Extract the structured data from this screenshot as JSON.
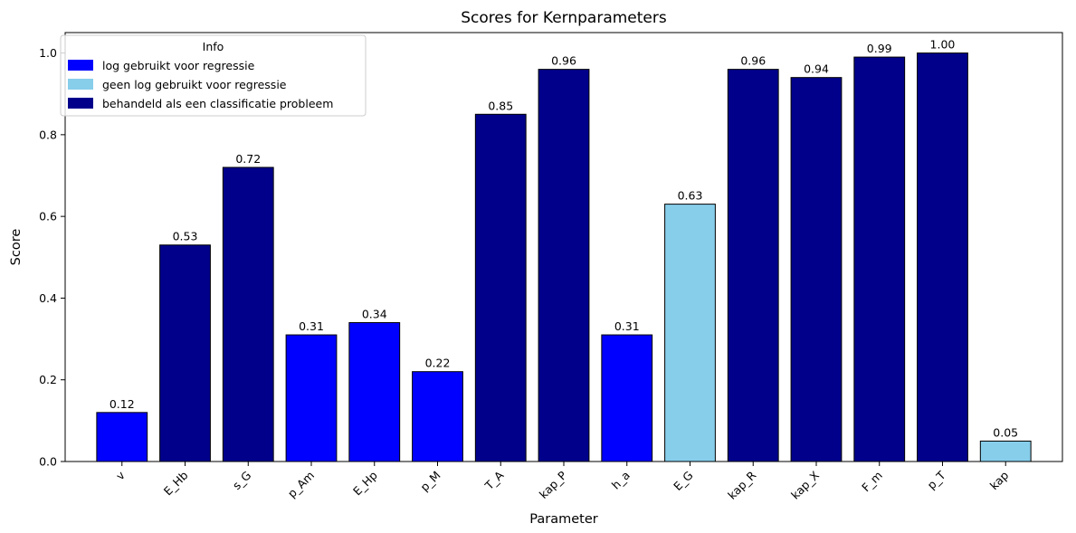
{
  "chart_data": {
    "type": "bar",
    "title": "Scores for Kernparameters",
    "xlabel": "Parameter",
    "ylabel": "Score",
    "ylim": [
      0,
      1.05
    ],
    "yticks": [
      0.0,
      0.2,
      0.4,
      0.6,
      0.8,
      1.0
    ],
    "ytick_labels": [
      "0.0",
      "0.2",
      "0.4",
      "0.6",
      "0.8",
      "1.0"
    ],
    "categories": [
      "v",
      "E_Hb",
      "s_G",
      "p_Am",
      "E_Hp",
      "p_M",
      "T_A",
      "kap_P",
      "h_a",
      "E_G",
      "kap_R",
      "kap_X",
      "F_m",
      "p_T",
      "kap"
    ],
    "values": [
      0.12,
      0.53,
      0.72,
      0.31,
      0.34,
      0.22,
      0.85,
      0.96,
      0.31,
      0.63,
      0.96,
      0.94,
      0.99,
      1.0,
      0.05
    ],
    "value_labels": [
      "0.12",
      "0.53",
      "0.72",
      "0.31",
      "0.34",
      "0.22",
      "0.85",
      "0.96",
      "0.31",
      "0.63",
      "0.96",
      "0.94",
      "0.99",
      "1.00",
      "0.05"
    ],
    "bar_groups": [
      "log",
      "cls",
      "cls",
      "log",
      "log",
      "log",
      "cls",
      "cls",
      "log",
      "nolog",
      "cls",
      "cls",
      "cls",
      "cls",
      "nolog"
    ],
    "grid": false,
    "legend": {
      "title": "Info",
      "placement": "top-left",
      "entries": [
        {
          "key": "log",
          "label": "log gebruikt voor regressie",
          "color": "#0000ff"
        },
        {
          "key": "nolog",
          "label": "geen log gebruikt voor regressie",
          "color": "#87ceeb"
        },
        {
          "key": "cls",
          "label": "behandeld als een classificatie probleem",
          "color": "#00008b"
        }
      ]
    }
  }
}
